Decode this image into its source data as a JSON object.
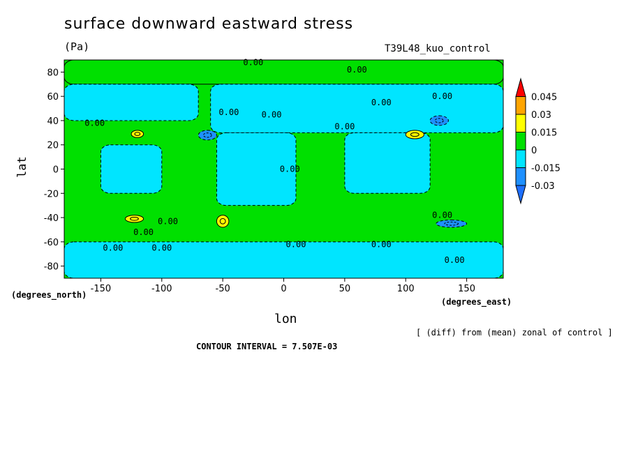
{
  "chart_data": {
    "type": "heatmap",
    "title": "surface downward eastward stress",
    "units": "(Pa)",
    "dataset_label": "T39L48_kuo_control",
    "xlabel": "lon",
    "ylabel": "lat",
    "x_units": "(degrees_east)",
    "y_units": "(degrees_north)",
    "xlim": [
      -180,
      180
    ],
    "ylim": [
      -90,
      90
    ],
    "x_ticks": [
      -150,
      -100,
      -50,
      0,
      50,
      100,
      150
    ],
    "y_ticks": [
      80,
      60,
      40,
      20,
      0,
      -20,
      -40,
      -60,
      -80
    ],
    "x_tick_labels": [
      "-150",
      "-100",
      "-50",
      "0",
      "50",
      "100",
      "150"
    ],
    "y_tick_labels": [
      "80",
      "60",
      "40",
      "20",
      "0",
      "-20",
      "-40",
      "-60",
      "-80"
    ],
    "contour_interval_text": "CONTOUR INTERVAL = 7.507E-03",
    "note": "[ (diff) from (mean) zonal of control ]",
    "colorbar": {
      "levels": [
        "0.045",
        "0.03",
        "0.015",
        "0",
        "-0.015",
        "-0.03"
      ],
      "colors": [
        "#ff0000",
        "#ffa500",
        "#ffff00",
        "#00e000",
        "#00e5ff",
        "#1e90ff",
        "#1e6fff"
      ]
    },
    "contour_labels": [
      "0.00",
      "0.00",
      "0.00",
      "0.00",
      "0.00",
      "0.00",
      "0.00",
      "0.00",
      "0.00",
      "0.00",
      "0.00",
      "0.00",
      "0.00",
      "0.00",
      "0.00",
      "0.00",
      "0.00"
    ],
    "regions": [
      {
        "level": "positive",
        "lon": [
          -180,
          180
        ],
        "lat": [
          70,
          90
        ]
      },
      {
        "level": "negative",
        "lon": [
          -180,
          -70
        ],
        "lat": [
          40,
          70
        ]
      },
      {
        "level": "negative",
        "lon": [
          -60,
          180
        ],
        "lat": [
          30,
          70
        ]
      },
      {
        "level": "negative",
        "lon": [
          -150,
          -100
        ],
        "lat": [
          -20,
          20
        ]
      },
      {
        "level": "negative",
        "lon": [
          -55,
          10
        ],
        "lat": [
          -30,
          30
        ]
      },
      {
        "level": "negative",
        "lon": [
          50,
          120
        ],
        "lat": [
          -20,
          30
        ]
      },
      {
        "level": "negative",
        "lon": [
          -180,
          180
        ],
        "lat": [
          -90,
          -60
        ]
      },
      {
        "level": "strong-positive",
        "lon": [
          -125,
          -115
        ],
        "lat": [
          26,
          32
        ]
      },
      {
        "level": "strong-positive",
        "lon": [
          100,
          115
        ],
        "lat": [
          25,
          32
        ]
      },
      {
        "level": "strong-positive",
        "lon": [
          -130,
          -115
        ],
        "lat": [
          -44,
          -38
        ]
      },
      {
        "level": "strong-positive",
        "lon": [
          -55,
          -45
        ],
        "lat": [
          -48,
          -38
        ]
      },
      {
        "level": "strong-negative",
        "lon": [
          -70,
          -55
        ],
        "lat": [
          24,
          32
        ]
      },
      {
        "level": "strong-negative",
        "lon": [
          120,
          135
        ],
        "lat": [
          36,
          44
        ]
      },
      {
        "level": "strong-negative",
        "lon": [
          125,
          150
        ],
        "lat": [
          -48,
          -42
        ]
      }
    ]
  }
}
